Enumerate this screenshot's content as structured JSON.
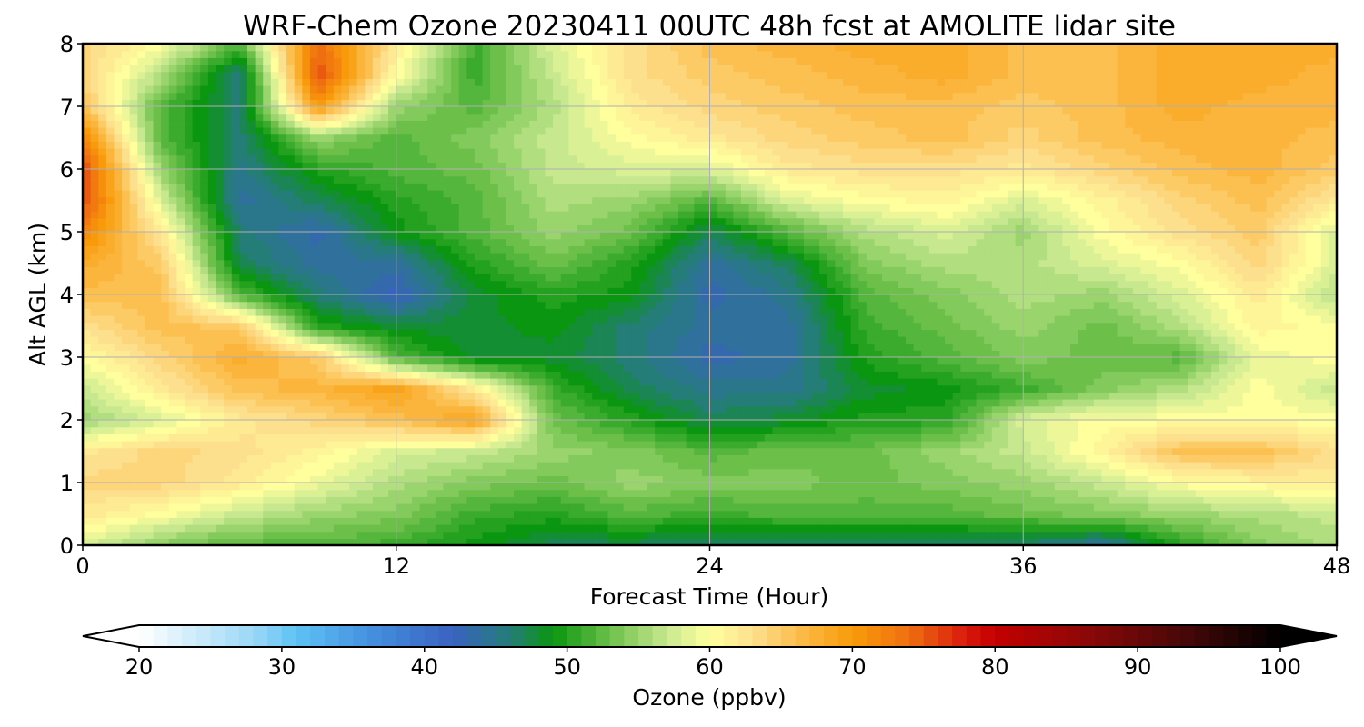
{
  "chart_data": {
    "type": "heatmap",
    "title": "WRF-Chem Ozone  20230411 00UTC 48h fcst at AMOLITE lidar site",
    "xlabel": "Forecast Time (Hour)",
    "ylabel": "Alt AGL (km)",
    "xlim": [
      0,
      48
    ],
    "ylim": [
      0,
      8
    ],
    "x_ticks": [
      "0",
      "12",
      "24",
      "36",
      "48"
    ],
    "y_ticks": [
      "0",
      "1",
      "2",
      "3",
      "4",
      "5",
      "6",
      "7",
      "8"
    ],
    "grid": true,
    "x_hours": [
      0,
      3,
      6,
      9,
      12,
      15,
      18,
      21,
      24,
      27,
      30,
      33,
      36,
      39,
      42,
      45,
      48
    ],
    "y_km": [
      0,
      0.5,
      1,
      1.5,
      2,
      2.5,
      3,
      3.5,
      4,
      4.5,
      5,
      5.5,
      6,
      6.5,
      7,
      7.5,
      8
    ],
    "z_ppbv": [
      [
        58,
        54,
        52,
        52,
        51,
        49,
        47,
        47,
        46,
        46,
        46,
        46,
        46,
        44,
        50,
        54,
        56
      ],
      [
        62,
        60,
        57,
        55,
        54,
        51,
        50,
        52,
        51,
        52,
        52,
        52,
        53,
        54,
        55,
        56,
        57
      ],
      [
        64,
        64,
        62,
        59,
        56,
        54,
        53,
        55,
        54,
        54,
        53,
        54,
        55,
        57,
        60,
        61,
        62
      ],
      [
        62,
        64,
        63,
        61,
        58,
        57,
        55,
        54,
        52,
        53,
        53,
        55,
        57,
        61,
        66,
        66,
        63
      ],
      [
        55,
        58,
        62,
        64,
        66,
        69,
        53,
        50,
        47,
        48,
        50,
        50,
        58,
        60,
        60,
        60,
        60
      ],
      [
        57,
        62,
        66,
        67,
        69,
        62,
        51,
        47,
        45,
        45,
        48,
        49,
        51,
        54,
        56,
        60,
        57
      ],
      [
        60,
        64,
        68,
        65,
        52,
        48,
        48,
        46,
        43,
        44,
        50,
        52,
        54,
        53,
        52,
        59,
        60
      ],
      [
        63,
        66,
        65,
        50,
        48,
        48,
        49,
        46,
        44,
        44,
        51,
        53,
        55,
        53,
        56,
        61,
        60
      ],
      [
        66,
        66,
        52,
        46,
        42,
        48,
        50,
        49,
        43,
        45,
        52,
        54,
        56,
        55,
        58,
        62,
        56
      ],
      [
        68,
        65,
        47,
        44,
        44,
        50,
        53,
        50,
        44,
        47,
        54,
        56,
        56,
        58,
        60,
        64,
        58
      ],
      [
        72,
        62,
        46,
        43,
        49,
        52,
        55,
        53,
        47,
        52,
        56,
        58,
        55,
        60,
        63,
        65,
        58
      ],
      [
        76,
        58,
        44,
        47,
        50,
        52,
        56,
        55,
        52,
        58,
        60,
        61,
        58,
        61,
        64,
        66,
        62
      ],
      [
        76,
        55,
        45,
        50,
        52,
        53,
        57,
        58,
        58,
        62,
        63,
        63,
        62,
        64,
        66,
        67,
        65
      ],
      [
        72,
        52,
        46,
        55,
        52,
        54,
        57,
        60,
        62,
        64,
        65,
        66,
        64,
        66,
        67,
        67,
        66
      ],
      [
        66,
        52,
        46,
        70,
        55,
        52,
        56,
        62,
        64,
        65,
        66,
        66,
        65,
        66,
        68,
        67,
        67
      ],
      [
        64,
        56,
        45,
        76,
        60,
        51,
        57,
        63,
        65,
        66,
        67,
        68,
        66,
        66,
        68,
        68,
        67
      ],
      [
        64,
        60,
        52,
        74,
        62,
        51,
        58,
        63,
        66,
        67,
        68,
        68,
        66,
        66,
        68,
        68,
        68
      ]
    ],
    "colorbar": {
      "label": "Ozone  (ppbv)",
      "min": 20,
      "max": 100,
      "ticks": [
        "20",
        "30",
        "40",
        "50",
        "60",
        "70",
        "80",
        "90",
        "100"
      ],
      "extend": "both",
      "stops": [
        {
          "v": 20,
          "c": "#ffffff"
        },
        {
          "v": 28,
          "c": "#9bd8f6"
        },
        {
          "v": 31,
          "c": "#5ec2f4"
        },
        {
          "v": 36,
          "c": "#4592e0"
        },
        {
          "v": 42,
          "c": "#3a62c0"
        },
        {
          "v": 46,
          "c": "#257d78"
        },
        {
          "v": 49,
          "c": "#0a9610"
        },
        {
          "v": 53,
          "c": "#6cc04a"
        },
        {
          "v": 57,
          "c": "#c8e890"
        },
        {
          "v": 60,
          "c": "#ffff9e"
        },
        {
          "v": 63,
          "c": "#fde08e"
        },
        {
          "v": 67,
          "c": "#fbb53c"
        },
        {
          "v": 70,
          "c": "#f89a0a"
        },
        {
          "v": 74,
          "c": "#ef6e10"
        },
        {
          "v": 78,
          "c": "#d8180c"
        },
        {
          "v": 80,
          "c": "#c40000"
        },
        {
          "v": 86,
          "c": "#900808"
        },
        {
          "v": 93,
          "c": "#4a0808"
        },
        {
          "v": 100,
          "c": "#000000"
        }
      ]
    }
  }
}
